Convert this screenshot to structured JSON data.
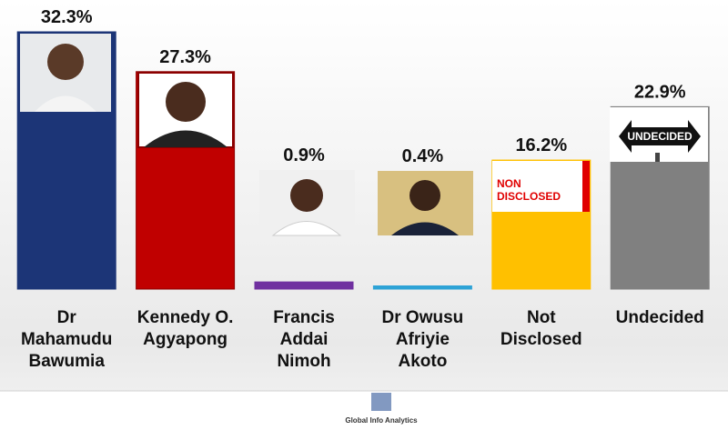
{
  "chart_data": {
    "type": "bar",
    "categories": [
      "Dr Mahamudu Bawumia",
      "Kennedy O. Agyapong",
      "Francis Addai Nimoh",
      "Dr Owusu Afriyie Akoto",
      "Not Disclosed",
      "Undecided"
    ],
    "values": [
      32.3,
      27.3,
      0.9,
      0.4,
      16.2,
      22.9
    ],
    "value_labels": [
      "32.3%",
      "27.3%",
      "0.9%",
      "0.4%",
      "16.2%",
      "22.9%"
    ],
    "colors": [
      "#1c3577",
      "#c00000",
      "#7030a0",
      "#2ea3d6",
      "#ffc000",
      "#808080"
    ],
    "annotations": [
      "NON",
      "DISCLOSED",
      "UNDECIDED"
    ],
    "source": "Global Info Analytics"
  }
}
